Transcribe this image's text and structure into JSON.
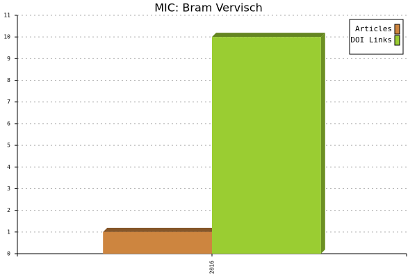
{
  "chart_data": {
    "type": "bar",
    "title": "MIC: Bram Vervisch",
    "categories": [
      "2016"
    ],
    "series": [
      {
        "name": "Articles",
        "color": "#cd853f",
        "values": [
          1
        ]
      },
      {
        "name": "DOI Links",
        "color": "#9acd32",
        "values": [
          10
        ]
      }
    ],
    "ylim": [
      0,
      11
    ],
    "yticks": [
      0,
      1,
      2,
      3,
      4,
      5,
      6,
      7,
      8,
      9,
      10,
      11
    ],
    "grid": true,
    "legend": "upper-right"
  }
}
